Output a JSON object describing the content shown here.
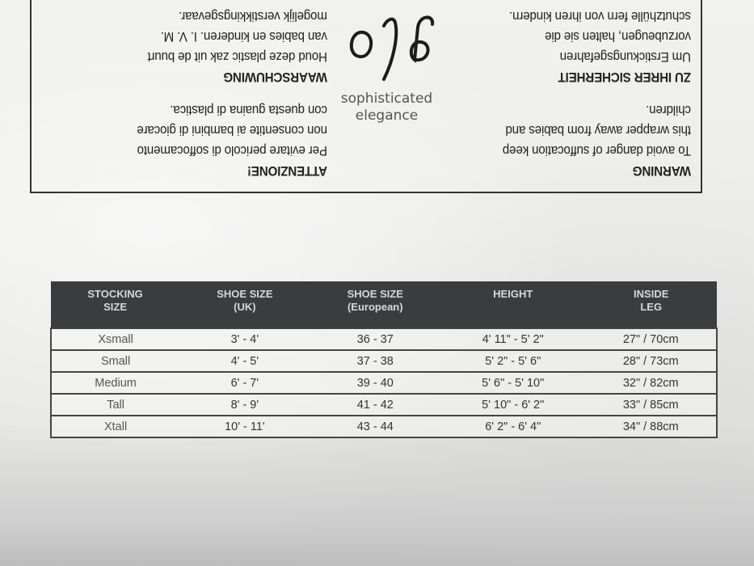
{
  "warning_box": {
    "english": {
      "heading": "WARNING",
      "lines": [
        "To avoid danger of suffocation keep",
        "this wrapper away from babies and",
        "children."
      ]
    },
    "german": {
      "heading": "ZU IHRER SICHERHEIT",
      "lines": [
        "Um Erstickungsgefahren",
        "vorzubeugen, halten sie die",
        "schutzhülle fern von ihren kindern."
      ]
    },
    "italian": {
      "heading": "ATTENZIONE!",
      "lines": [
        "Per evitare pericolo di soffocamento",
        "non consentite ai bambini di giocare",
        "con questa guaina di plastica."
      ]
    },
    "dutch": {
      "heading": "WAARSCHUWING",
      "lines": [
        "Houd deze plastic zak uit de buurt",
        "van babies en kinderen. I. V. M.",
        "mogelijk verstikkingsgevaar."
      ]
    }
  },
  "brand": {
    "logo": "glo",
    "tagline": "sophisticated elegance"
  },
  "size_table": {
    "headers": [
      [
        "STOCKING",
        "SIZE"
      ],
      [
        "SHOE SIZE",
        "(UK)"
      ],
      [
        "SHOE SIZE",
        "(European)"
      ],
      [
        "HEIGHT",
        ""
      ],
      [
        "INSIDE",
        "LEG"
      ]
    ],
    "rows": [
      [
        "Xsmall",
        "3' - 4'",
        "36 - 37",
        "4' 11\" - 5' 2\"",
        "27\" / 70cm"
      ],
      [
        "Small",
        "4' - 5'",
        "37 - 38",
        "5' 2\" - 5' 6\"",
        "28\" / 73cm"
      ],
      [
        "Medium",
        "6' - 7'",
        "39 - 40",
        "5' 6\" - 5' 10\"",
        "32\" / 82cm"
      ],
      [
        "Tall",
        "8' - 9'",
        "41 - 42",
        "5' 10\" - 6' 2\"",
        "33\" / 85cm"
      ],
      [
        "Xtall",
        "10' - 11'",
        "43 - 44",
        "6' 2\" - 6' 4\"",
        "34\" / 88cm"
      ]
    ]
  }
}
